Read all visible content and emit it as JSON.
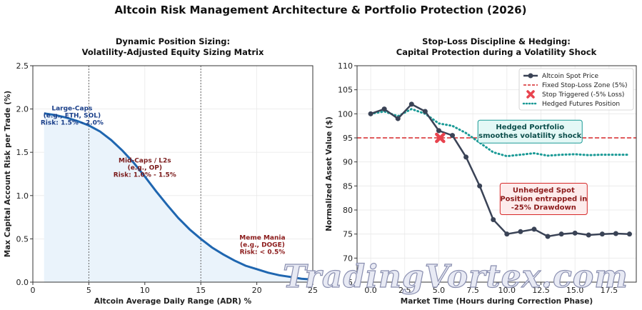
{
  "suptitle": "Altcoin Risk Management Architecture & Portfolio Protection (2026)",
  "watermark": "TradingVortex.com",
  "colors": {
    "sizing_curve": "#1f66b0",
    "sizing_fill": "#eaf3fb",
    "spot": "#3a4356",
    "stop_zone": "#d62728",
    "stop_marker": "#e8434e",
    "hedge": "#1a9a96",
    "largecap_text": "#1a3f8a",
    "midcap_text": "#7a1a1a",
    "meme_text": "#8b1a1a"
  },
  "chart_data": [
    {
      "type": "line",
      "title": "Dynamic Position Sizing:\nVolatility-Adjusted Equity Sizing Matrix",
      "xlabel": "Altcoin Average Daily Range (ADR) %",
      "ylabel": "Max Capital Account Risk per Trade (%)",
      "xlim": [
        0,
        25
      ],
      "ylim": [
        0,
        2.5
      ],
      "xticks": [
        0,
        5,
        10,
        15,
        20,
        25
      ],
      "yticks": [
        0.0,
        0.5,
        1.0,
        1.5,
        2.0,
        2.5
      ],
      "grid": true,
      "vlines": [
        5,
        15
      ],
      "fill_under": true,
      "series": [
        {
          "x": [
            1,
            2,
            3,
            4,
            5,
            6,
            7,
            8,
            9,
            10,
            11,
            12,
            13,
            14,
            15,
            16,
            17,
            18,
            19,
            20,
            21,
            22,
            23,
            24,
            25
          ],
          "values": [
            1.95,
            1.93,
            1.9,
            1.86,
            1.81,
            1.74,
            1.64,
            1.52,
            1.38,
            1.22,
            1.05,
            0.89,
            0.74,
            0.61,
            0.5,
            0.4,
            0.32,
            0.25,
            0.19,
            0.15,
            0.11,
            0.08,
            0.06,
            0.04,
            0.03
          ]
        }
      ],
      "annotations": [
        {
          "lines": [
            "Large-Caps",
            "(e.g., ETH, SOL)",
            "Risk: 1.5% - 2.0%"
          ],
          "x": 3.5,
          "y": 1.9,
          "color": "largecap"
        },
        {
          "lines": [
            "Mid-Caps / L2s",
            "(e.g., OP)",
            "Risk: 1.0% - 1.5%"
          ],
          "x": 10,
          "y": 1.3,
          "color": "midcap"
        },
        {
          "lines": [
            "Meme Mania",
            "(e.g., DOGE)",
            "Risk: < 0.5%"
          ],
          "x": 20.5,
          "y": 0.41,
          "color": "meme"
        }
      ]
    },
    {
      "type": "line",
      "title": "Stop-Loss Discipline & Hedging:\nCapital Protection during a Volatility Shock",
      "xlabel": "Market Time (Hours during Correction Phase)",
      "ylabel": "Normalized Asset Value ($)",
      "xlim": [
        -1,
        19.5
      ],
      "ylim": [
        65,
        110
      ],
      "xticks": [
        0.0,
        2.5,
        5.0,
        7.5,
        10.0,
        12.5,
        15.0,
        17.5
      ],
      "yticks": [
        65,
        70,
        75,
        80,
        85,
        90,
        95,
        100,
        105,
        110
      ],
      "grid": true,
      "legend": "top-right",
      "series": [
        {
          "name": "Altcoin Spot Price",
          "x": [
            0,
            1,
            2,
            3,
            4,
            5,
            6,
            7,
            8,
            9,
            10,
            11,
            12,
            13,
            14,
            15,
            16,
            17,
            18,
            19
          ],
          "values": [
            100,
            101,
            99,
            102,
            100.5,
            96.5,
            95.5,
            91,
            85,
            78,
            75,
            75.5,
            76,
            74.5,
            75,
            75.2,
            74.8,
            75,
            75.1,
            75
          ]
        },
        {
          "name": "Fixed Stop-Loss Zone (5%)",
          "x": [
            -1,
            19.5
          ],
          "values": [
            95,
            95
          ]
        },
        {
          "name": "Stop Triggered (-5% Loss)",
          "x": [
            5.1
          ],
          "values": [
            95
          ]
        },
        {
          "name": "Hedged Futures Position",
          "x": [
            0,
            1,
            2,
            3,
            4,
            5,
            6,
            7,
            8,
            9,
            10,
            11,
            12,
            13,
            14,
            15,
            16,
            17,
            18,
            19
          ],
          "values": [
            100,
            100.5,
            99.5,
            101,
            100,
            98,
            97.5,
            96,
            94,
            92,
            91.2,
            91.5,
            91.8,
            91.3,
            91.5,
            91.6,
            91.4,
            91.5,
            91.5,
            91.5
          ]
        }
      ],
      "callouts": [
        {
          "lines": [
            "Hedged Portfolio",
            "smoothes volatility shock"
          ],
          "x": 11.7,
          "y": 96.3,
          "style": "hedge"
        },
        {
          "lines": [
            "Unhedged Spot",
            "Position entrapped in",
            "-25% Drawdown"
          ],
          "x": 12.7,
          "y": 82.3,
          "style": "spot"
        }
      ]
    }
  ]
}
